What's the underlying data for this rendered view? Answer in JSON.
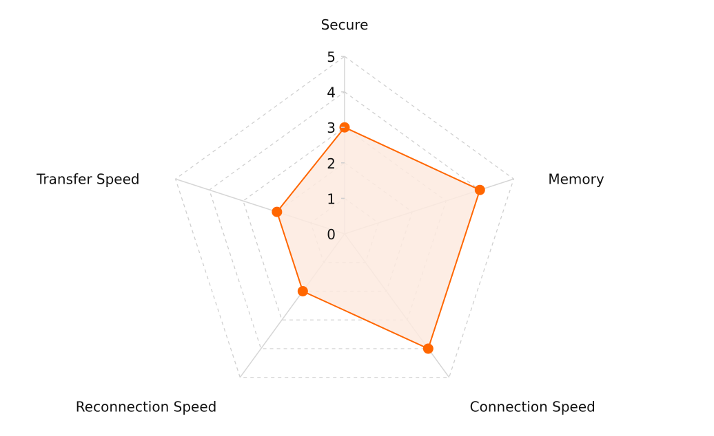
{
  "chart_data": {
    "type": "radar",
    "title": "",
    "categories": [
      "Secure",
      "Memory",
      "Connection Speed",
      "Reconnection Speed",
      "Transfer Speed"
    ],
    "series": [
      {
        "values": [
          3,
          4,
          4,
          2,
          2
        ],
        "color": "#ff6600",
        "fill": "#fdeadf"
      }
    ],
    "rlim": [
      0,
      5
    ],
    "ticks": [
      "0",
      "1",
      "2",
      "3",
      "4",
      "5"
    ],
    "grid": true,
    "grid_color": "#d0d0d0"
  }
}
